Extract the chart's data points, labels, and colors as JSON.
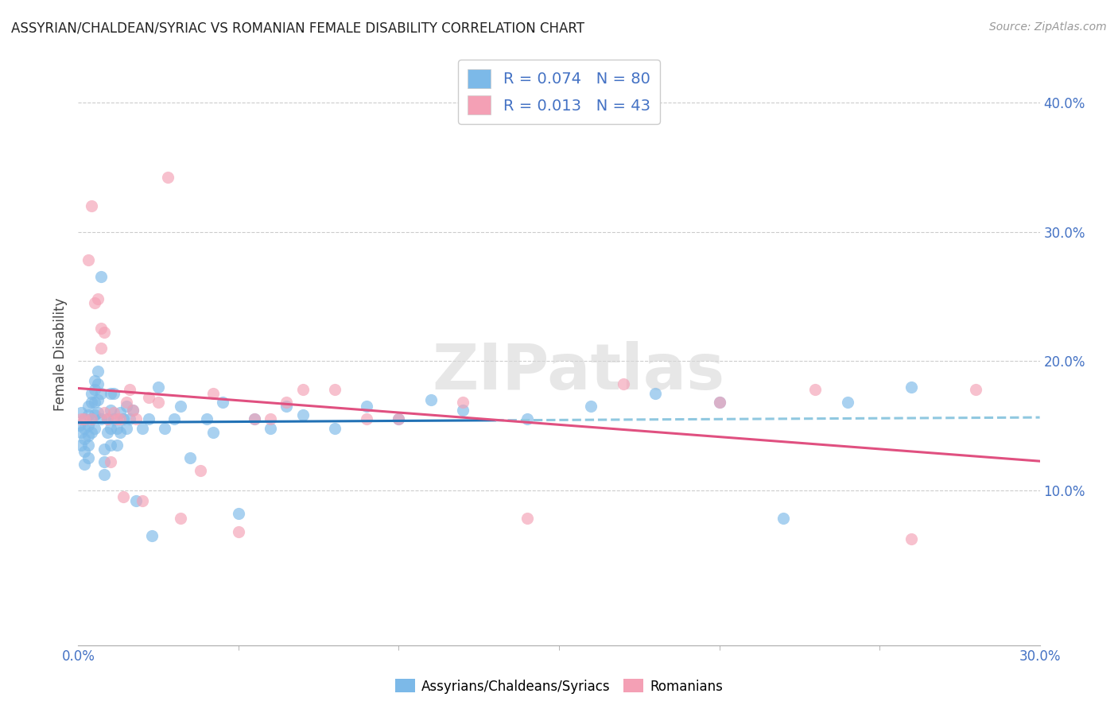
{
  "title": "ASSYRIAN/CHALDEAN/SYRIAC VS ROMANIAN FEMALE DISABILITY CORRELATION CHART",
  "source": "Source: ZipAtlas.com",
  "ylabel": "Female Disability",
  "right_yticks": [
    "40.0%",
    "30.0%",
    "20.0%",
    "10.0%"
  ],
  "right_ytick_vals": [
    0.4,
    0.3,
    0.2,
    0.1
  ],
  "xlim": [
    0.0,
    0.3
  ],
  "ylim": [
    -0.02,
    0.43
  ],
  "blue_color": "#7cb9e8",
  "pink_color": "#f4a0b5",
  "blue_line_color": "#2171b5",
  "pink_line_color": "#e05080",
  "dashed_line_color": "#90c8e0",
  "watermark": "ZIPatlas",
  "assyrians_x": [
    0.0005,
    0.001,
    0.001,
    0.001,
    0.002,
    0.002,
    0.002,
    0.002,
    0.002,
    0.003,
    0.003,
    0.003,
    0.003,
    0.003,
    0.003,
    0.004,
    0.004,
    0.004,
    0.004,
    0.005,
    0.005,
    0.005,
    0.005,
    0.005,
    0.006,
    0.006,
    0.006,
    0.006,
    0.007,
    0.007,
    0.007,
    0.008,
    0.008,
    0.008,
    0.009,
    0.009,
    0.01,
    0.01,
    0.01,
    0.01,
    0.011,
    0.011,
    0.012,
    0.012,
    0.013,
    0.013,
    0.014,
    0.015,
    0.015,
    0.016,
    0.017,
    0.018,
    0.02,
    0.022,
    0.023,
    0.025,
    0.027,
    0.03,
    0.032,
    0.035,
    0.04,
    0.042,
    0.045,
    0.05,
    0.055,
    0.06,
    0.065,
    0.07,
    0.08,
    0.09,
    0.1,
    0.11,
    0.12,
    0.14,
    0.16,
    0.18,
    0.2,
    0.22,
    0.24,
    0.26
  ],
  "assyrians_y": [
    0.15,
    0.16,
    0.145,
    0.135,
    0.155,
    0.148,
    0.14,
    0.13,
    0.12,
    0.165,
    0.158,
    0.15,
    0.142,
    0.135,
    0.125,
    0.175,
    0.168,
    0.155,
    0.145,
    0.185,
    0.178,
    0.168,
    0.158,
    0.148,
    0.192,
    0.182,
    0.17,
    0.16,
    0.265,
    0.175,
    0.155,
    0.132,
    0.122,
    0.112,
    0.155,
    0.145,
    0.135,
    0.175,
    0.162,
    0.148,
    0.175,
    0.155,
    0.148,
    0.135,
    0.16,
    0.145,
    0.155,
    0.165,
    0.148,
    0.155,
    0.162,
    0.092,
    0.148,
    0.155,
    0.065,
    0.18,
    0.148,
    0.155,
    0.165,
    0.125,
    0.155,
    0.145,
    0.168,
    0.082,
    0.155,
    0.148,
    0.165,
    0.158,
    0.148,
    0.165,
    0.155,
    0.17,
    0.162,
    0.155,
    0.165,
    0.175,
    0.168,
    0.078,
    0.168,
    0.18
  ],
  "romanians_x": [
    0.001,
    0.002,
    0.003,
    0.004,
    0.004,
    0.005,
    0.006,
    0.007,
    0.007,
    0.008,
    0.008,
    0.009,
    0.01,
    0.011,
    0.012,
    0.013,
    0.014,
    0.015,
    0.016,
    0.017,
    0.018,
    0.02,
    0.022,
    0.025,
    0.028,
    0.032,
    0.038,
    0.042,
    0.05,
    0.055,
    0.06,
    0.065,
    0.07,
    0.08,
    0.09,
    0.1,
    0.12,
    0.14,
    0.17,
    0.2,
    0.23,
    0.26,
    0.28
  ],
  "romanians_y": [
    0.155,
    0.155,
    0.278,
    0.155,
    0.32,
    0.245,
    0.248,
    0.225,
    0.21,
    0.222,
    0.16,
    0.155,
    0.122,
    0.16,
    0.155,
    0.155,
    0.095,
    0.168,
    0.178,
    0.162,
    0.155,
    0.092,
    0.172,
    0.168,
    0.342,
    0.078,
    0.115,
    0.175,
    0.068,
    0.155,
    0.155,
    0.168,
    0.178,
    0.178,
    0.155,
    0.155,
    0.168,
    0.078,
    0.182,
    0.168,
    0.178,
    0.062,
    0.178
  ]
}
